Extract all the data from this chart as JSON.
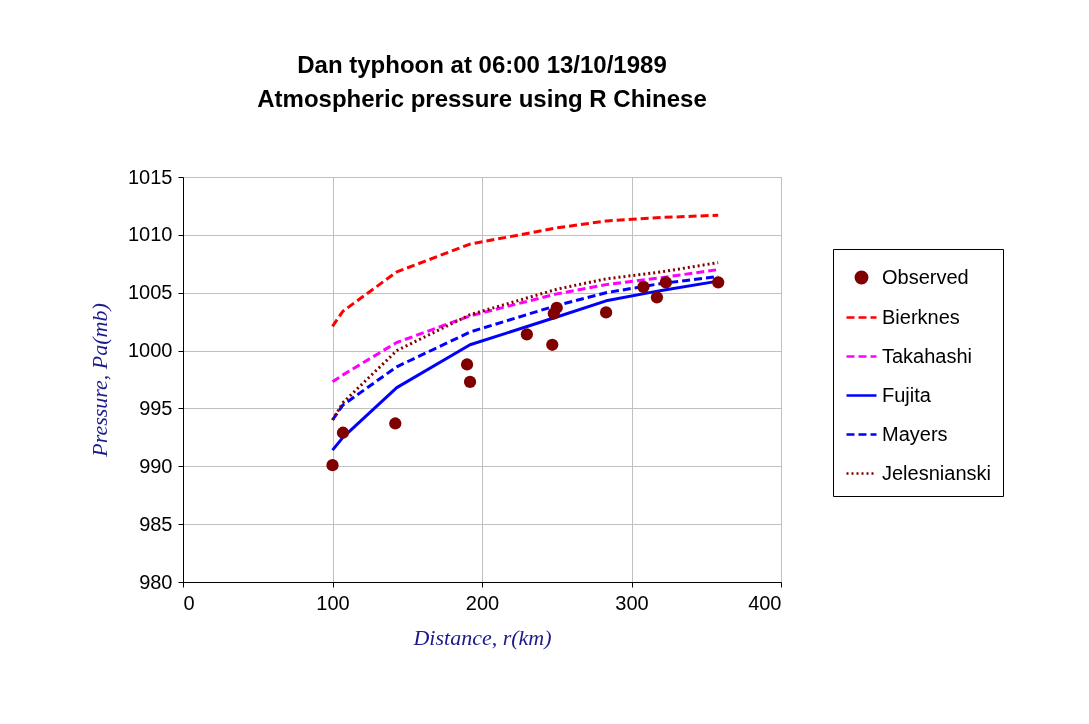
{
  "chart_data": {
    "type": "line",
    "title": "Dan typhoon at 06:00 13/10/1989",
    "subtitle": "Atmospheric pressure using R Chinese",
    "xlabel": "Distance, r(km)",
    "ylabel": "Pressure, Pa(mb)",
    "xlim": [
      0,
      400
    ],
    "xticks": [
      0,
      100,
      200,
      300,
      400
    ],
    "ylim": [
      980,
      1015
    ],
    "yticks": [
      980,
      985,
      990,
      995,
      1000,
      1005,
      1010,
      1015
    ],
    "grid": true,
    "legend": "right",
    "series": [
      {
        "name": "Observed",
        "type": "scatter",
        "marker": "circle",
        "color": "#800000",
        "x": [
          100,
          107,
          142,
          190,
          192,
          230,
          247,
          248,
          250,
          283,
          308,
          317,
          323,
          358
        ],
        "values": [
          990.1,
          992.9,
          993.7,
          998.8,
          997.3,
          1001.4,
          1000.5,
          1003.2,
          1003.7,
          1003.3,
          1005.5,
          1004.6,
          1005.9,
          1005.9
        ]
      },
      {
        "name": "Bierknes",
        "type": "line",
        "line_style": "dashed",
        "color": "#ff0000",
        "x": [
          100,
          107,
          143,
          192,
          250,
          283,
          320,
          358
        ],
        "values": [
          1002.1,
          1003.4,
          1006.8,
          1009.2,
          1010.6,
          1011.2,
          1011.5,
          1011.7
        ]
      },
      {
        "name": "Takahashi",
        "type": "line",
        "line_style": "dashed",
        "color": "#ff00ff",
        "x": [
          100,
          107,
          143,
          192,
          250,
          283,
          320,
          358
        ],
        "values": [
          997.3,
          997.9,
          1000.7,
          1003.0,
          1004.9,
          1005.7,
          1006.3,
          1007.0
        ]
      },
      {
        "name": "Fujita",
        "type": "line",
        "line_style": "solid",
        "color": "#0000ff",
        "x": [
          100,
          107,
          143,
          192,
          250,
          283,
          320,
          358
        ],
        "values": [
          991.4,
          992.5,
          996.8,
          1000.5,
          1002.9,
          1004.3,
          1005.2,
          1006.0
        ]
      },
      {
        "name": "Mayers",
        "type": "line",
        "line_style": "dashed",
        "color": "#0000ff",
        "x": [
          100,
          107,
          143,
          192,
          250,
          283,
          320,
          358
        ],
        "values": [
          994.0,
          995.3,
          998.6,
          1001.6,
          1003.9,
          1005.0,
          1005.8,
          1006.4
        ]
      },
      {
        "name": "Jelesnianski",
        "type": "line",
        "line_style": "dotted",
        "color": "#800000",
        "x": [
          100,
          107,
          143,
          192,
          250,
          283,
          320,
          358
        ],
        "values": [
          994.0,
          995.5,
          1000.0,
          1003.1,
          1005.3,
          1006.2,
          1006.8,
          1007.6
        ]
      }
    ]
  }
}
